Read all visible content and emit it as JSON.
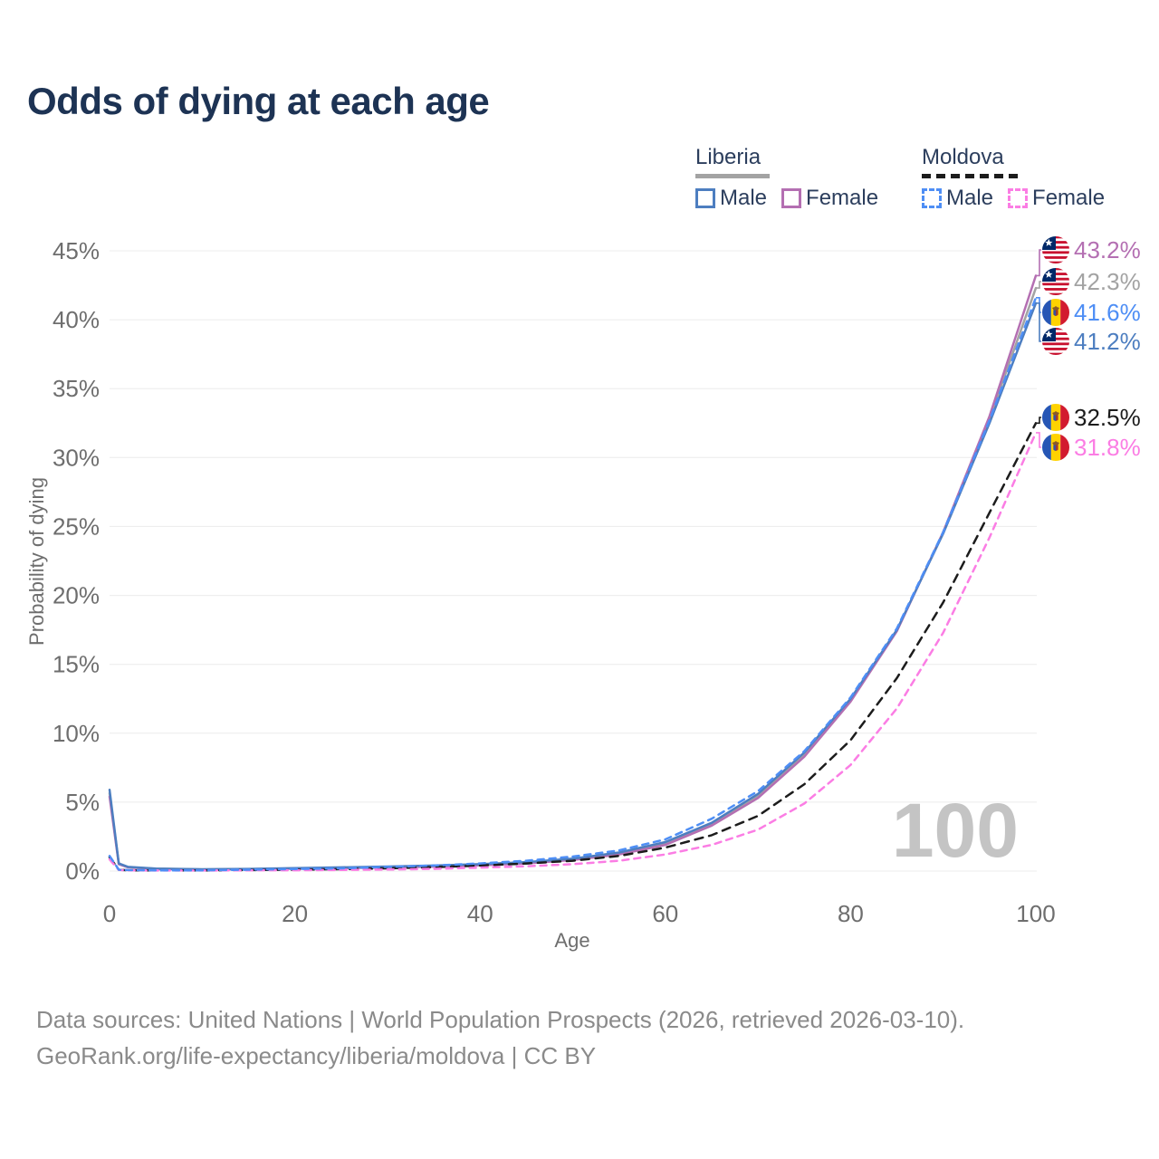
{
  "title": "Odds of dying at each age",
  "legend": {
    "groups": [
      {
        "country": "Liberia",
        "items": [
          {
            "label": "Male"
          },
          {
            "label": "Female"
          }
        ]
      },
      {
        "country": "Moldova",
        "items": [
          {
            "label": "Male"
          },
          {
            "label": "Female"
          }
        ]
      }
    ]
  },
  "watermark": "100",
  "footer": {
    "line1": "Data sources: United Nations | World Population Prospects (2026, retrieved 2026-03-10).",
    "line2": "GeoRank.org/life-expectancy/liberia/moldova | CC BY"
  },
  "chart_data": {
    "type": "line",
    "title": "Odds of dying at each age",
    "xlabel": "Age",
    "ylabel": "Probability of dying",
    "xlim": [
      0,
      100
    ],
    "ylim": [
      0,
      45
    ],
    "grid": "horizontal",
    "xticks": [
      "0",
      "20",
      "40",
      "60",
      "80",
      "100"
    ],
    "yticks": [
      "0%",
      "5%",
      "10%",
      "15%",
      "20%",
      "25%",
      "30%",
      "35%",
      "40%",
      "45%"
    ],
    "ages": [
      0,
      1,
      2,
      5,
      10,
      15,
      20,
      25,
      30,
      35,
      40,
      45,
      50,
      55,
      60,
      65,
      70,
      75,
      80,
      85,
      90,
      95,
      100
    ],
    "series": [
      {
        "id": "liberia-female",
        "name": "Liberia Female",
        "country": "Liberia",
        "sex": "Female",
        "color": "#b46fb2",
        "dash": "solid",
        "end_label": "43.2%",
        "values": [
          5.4,
          0.5,
          0.27,
          0.16,
          0.11,
          0.13,
          0.17,
          0.21,
          0.26,
          0.32,
          0.42,
          0.55,
          0.8,
          1.2,
          1.9,
          3.3,
          5.3,
          8.3,
          12.3,
          17.4,
          24.6,
          33.0,
          43.2
        ]
      },
      {
        "id": "liberia-combined",
        "name": "Liberia Both sexes",
        "country": "Liberia",
        "sex": "Both",
        "color": "#a3a3a3",
        "dash": "solid",
        "end_label": "42.3%",
        "values": [
          5.65,
          0.52,
          0.28,
          0.17,
          0.12,
          0.14,
          0.2,
          0.24,
          0.3,
          0.36,
          0.46,
          0.6,
          0.85,
          1.28,
          2.0,
          3.4,
          5.45,
          8.45,
          12.4,
          17.45,
          24.55,
          32.8,
          42.3
        ]
      },
      {
        "id": "moldova-male",
        "name": "Moldova Male",
        "country": "Moldova",
        "sex": "Male",
        "color": "#4e8ef5",
        "dash": "dashed",
        "end_label": "41.6%",
        "values": [
          1.1,
          0.1,
          0.07,
          0.05,
          0.05,
          0.1,
          0.15,
          0.2,
          0.3,
          0.4,
          0.55,
          0.75,
          1.05,
          1.5,
          2.3,
          3.8,
          5.8,
          8.7,
          12.6,
          17.6,
          24.6,
          32.7,
          41.6
        ]
      },
      {
        "id": "liberia-male",
        "name": "Liberia Male",
        "country": "Liberia",
        "sex": "Male",
        "color": "#4d7ec0",
        "dash": "solid",
        "end_label": "41.2%",
        "values": [
          5.9,
          0.55,
          0.3,
          0.18,
          0.13,
          0.16,
          0.22,
          0.27,
          0.33,
          0.4,
          0.5,
          0.65,
          0.9,
          1.35,
          2.1,
          3.5,
          5.6,
          8.6,
          12.5,
          17.5,
          24.5,
          32.5,
          41.2
        ]
      },
      {
        "id": "moldova-combined",
        "name": "Moldova Both sexes",
        "country": "Moldova",
        "sex": "Both",
        "color": "#1c1c1c",
        "dash": "dashed",
        "end_label": "32.5%",
        "values": [
          1.0,
          0.09,
          0.06,
          0.045,
          0.045,
          0.07,
          0.1,
          0.14,
          0.2,
          0.28,
          0.4,
          0.55,
          0.75,
          1.1,
          1.7,
          2.6,
          4.0,
          6.3,
          9.5,
          14.0,
          19.5,
          26.0,
          32.5
        ]
      },
      {
        "id": "moldova-female",
        "name": "Moldova Female",
        "country": "Moldova",
        "sex": "Female",
        "color": "#fb7de4",
        "dash": "dashed",
        "end_label": "31.8%",
        "values": [
          0.85,
          0.08,
          0.05,
          0.04,
          0.04,
          0.05,
          0.06,
          0.08,
          0.11,
          0.16,
          0.25,
          0.35,
          0.5,
          0.75,
          1.2,
          1.9,
          3.0,
          4.9,
          7.7,
          11.8,
          17.3,
          24.2,
          31.8
        ]
      }
    ],
    "legend_position": "top-right"
  }
}
